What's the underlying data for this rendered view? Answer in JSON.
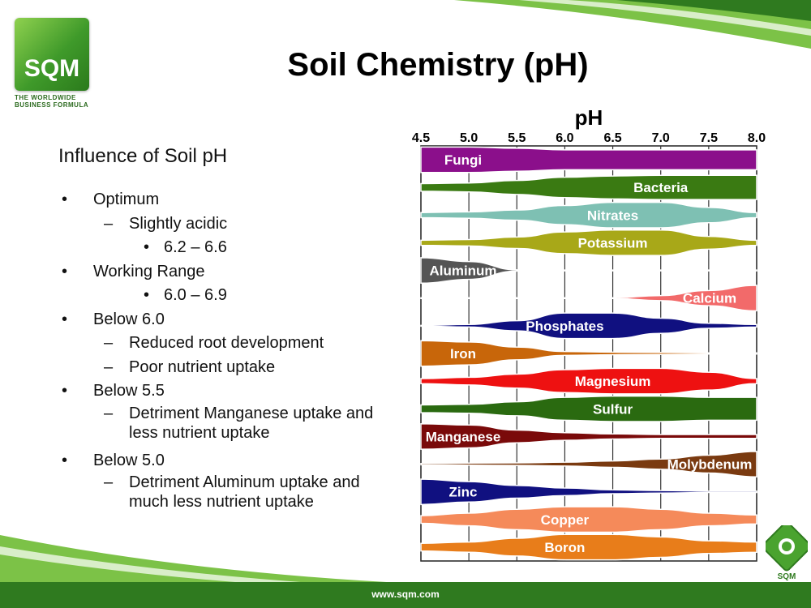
{
  "brand": {
    "name": "SQM",
    "tagline": [
      "THE WORLDWIDE",
      "BUSINESS FORMULA"
    ],
    "website": "www.sqm.com",
    "colors": {
      "primary_green": "#3f9a2a",
      "light_green": "#8fd14f",
      "footer_green": "#2f7a1f"
    }
  },
  "slide": {
    "title": "Soil Chemistry (pH)",
    "subtitle": "Influence of Soil pH"
  },
  "bullets": [
    {
      "level": 1,
      "marker": "•",
      "text": "Optimum"
    },
    {
      "level": 2,
      "marker": "–",
      "text": "Slightly acidic"
    },
    {
      "level": 3,
      "marker": "•",
      "text": "6.2 – 6.6"
    },
    {
      "level": 1,
      "marker": "•",
      "text": "Working Range"
    },
    {
      "level": 3,
      "marker": "•",
      "text": "6.0 – 6.9"
    },
    {
      "level": 1,
      "marker": "•",
      "text": "Below 6.0"
    },
    {
      "level": 2,
      "marker": "–",
      "text": "Reduced root development"
    },
    {
      "level": 2,
      "marker": "–",
      "text": "Poor nutrient uptake"
    },
    {
      "level": 1,
      "marker": "•",
      "text": "Below 5.5"
    },
    {
      "level": 2,
      "marker": "–",
      "text": "Detriment Manganese uptake and less nutrient uptake"
    },
    {
      "level": 1,
      "marker": "•",
      "text": "Below 5.0"
    },
    {
      "level": 2,
      "marker": "–",
      "text": "Detriment Aluminum uptake and much less nutrient uptake"
    }
  ],
  "chart_data": {
    "type": "area",
    "title": "pH",
    "x_ticks": [
      "4.5",
      "5.0",
      "5.5",
      "6.0",
      "6.5",
      "7.0",
      "7.5",
      "8.0"
    ],
    "xlim": [
      4.5,
      8.0
    ],
    "grid": true,
    "series": [
      {
        "name": "Fungi",
        "color": "#8b0f8b",
        "text_color": "#ffffff",
        "availability": [
          [
            4.5,
            1.0
          ],
          [
            5.0,
            1.0
          ],
          [
            5.5,
            0.9
          ],
          [
            6.0,
            0.78
          ],
          [
            6.5,
            0.78
          ],
          [
            7.0,
            0.78
          ],
          [
            7.5,
            0.78
          ],
          [
            8.0,
            0.78
          ]
        ]
      },
      {
        "name": "Bacteria",
        "color": "#3a7a12",
        "text_color": "#ffffff",
        "availability": [
          [
            4.5,
            0.3
          ],
          [
            5.0,
            0.35
          ],
          [
            5.5,
            0.55
          ],
          [
            6.0,
            0.8
          ],
          [
            6.5,
            0.9
          ],
          [
            7.0,
            0.95
          ],
          [
            7.5,
            0.95
          ],
          [
            8.0,
            0.95
          ]
        ]
      },
      {
        "name": "Nitrates",
        "color": "#7ec0b3",
        "text_color": "#ffffff",
        "availability": [
          [
            4.5,
            0.2
          ],
          [
            5.0,
            0.25
          ],
          [
            5.5,
            0.4
          ],
          [
            6.0,
            0.75
          ],
          [
            6.5,
            1.0
          ],
          [
            7.0,
            1.0
          ],
          [
            7.5,
            0.6
          ],
          [
            8.0,
            0.2
          ]
        ]
      },
      {
        "name": "Potassium",
        "color": "#a8a818",
        "text_color": "#ffffff",
        "availability": [
          [
            4.5,
            0.2
          ],
          [
            5.0,
            0.25
          ],
          [
            5.5,
            0.45
          ],
          [
            6.0,
            0.85
          ],
          [
            6.5,
            1.0
          ],
          [
            7.0,
            1.0
          ],
          [
            7.5,
            0.5
          ],
          [
            8.0,
            0.2
          ]
        ]
      },
      {
        "name": "Aluminum",
        "color": "#555555",
        "text_color": "#ffffff",
        "availability": [
          [
            4.5,
            1.0
          ],
          [
            5.0,
            0.7
          ],
          [
            5.5,
            0.05
          ],
          [
            6.0,
            0.0
          ],
          [
            6.5,
            0.0
          ],
          [
            7.0,
            0.0
          ],
          [
            7.5,
            0.0
          ],
          [
            8.0,
            0.0
          ]
        ]
      },
      {
        "name": "Calcium",
        "color": "#f26a6a",
        "text_color": "#ffffff",
        "availability": [
          [
            4.5,
            0.0
          ],
          [
            5.0,
            0.0
          ],
          [
            5.5,
            0.0
          ],
          [
            6.0,
            0.0
          ],
          [
            6.5,
            0.0
          ],
          [
            7.0,
            0.2
          ],
          [
            7.5,
            0.6
          ],
          [
            8.0,
            1.0
          ]
        ]
      },
      {
        "name": "Phosphates",
        "color": "#101080",
        "text_color": "#ffffff",
        "availability": [
          [
            4.5,
            0.0
          ],
          [
            5.0,
            0.1
          ],
          [
            5.5,
            0.4
          ],
          [
            6.0,
            1.0
          ],
          [
            6.5,
            1.0
          ],
          [
            7.0,
            0.6
          ],
          [
            7.5,
            0.2
          ],
          [
            8.0,
            0.1
          ]
        ]
      },
      {
        "name": "Iron",
        "color": "#c8660a",
        "text_color": "#ffffff",
        "availability": [
          [
            4.5,
            1.0
          ],
          [
            5.0,
            0.9
          ],
          [
            5.5,
            0.5
          ],
          [
            6.0,
            0.15
          ],
          [
            6.5,
            0.1
          ],
          [
            7.0,
            0.08
          ],
          [
            7.5,
            0.05
          ],
          [
            8.0,
            0.05
          ]
        ]
      },
      {
        "name": "Magnesium",
        "color": "#ee1111",
        "text_color": "#ffffff",
        "availability": [
          [
            4.5,
            0.2
          ],
          [
            5.0,
            0.3
          ],
          [
            5.5,
            0.55
          ],
          [
            6.0,
            0.9
          ],
          [
            6.5,
            1.0
          ],
          [
            7.0,
            1.0
          ],
          [
            7.5,
            0.7
          ],
          [
            8.0,
            0.2
          ]
        ]
      },
      {
        "name": "Sulfur",
        "color": "#2a6a10",
        "text_color": "#ffffff",
        "availability": [
          [
            4.5,
            0.3
          ],
          [
            5.0,
            0.35
          ],
          [
            5.5,
            0.55
          ],
          [
            6.0,
            0.9
          ],
          [
            6.5,
            1.0
          ],
          [
            7.0,
            1.0
          ],
          [
            7.5,
            0.9
          ],
          [
            8.0,
            0.9
          ]
        ]
      },
      {
        "name": "Manganese",
        "color": "#7a0a0a",
        "text_color": "#ffffff",
        "availability": [
          [
            4.5,
            1.0
          ],
          [
            5.0,
            0.9
          ],
          [
            5.5,
            0.5
          ],
          [
            6.0,
            0.3
          ],
          [
            6.5,
            0.2
          ],
          [
            7.0,
            0.15
          ],
          [
            7.5,
            0.15
          ],
          [
            8.0,
            0.15
          ]
        ]
      },
      {
        "name": "Molybdenum",
        "color": "#7a3a10",
        "text_color": "#ffffff",
        "availability": [
          [
            4.5,
            0.05
          ],
          [
            5.0,
            0.08
          ],
          [
            5.5,
            0.1
          ],
          [
            6.0,
            0.15
          ],
          [
            6.5,
            0.25
          ],
          [
            7.0,
            0.4
          ],
          [
            7.5,
            0.7
          ],
          [
            8.0,
            1.0
          ]
        ]
      },
      {
        "name": "Zinc",
        "color": "#101080",
        "text_color": "#ffffff",
        "availability": [
          [
            4.5,
            1.0
          ],
          [
            5.0,
            0.8
          ],
          [
            5.5,
            0.5
          ],
          [
            6.0,
            0.3
          ],
          [
            6.5,
            0.15
          ],
          [
            7.0,
            0.1
          ],
          [
            7.5,
            0.05
          ],
          [
            8.0,
            0.05
          ]
        ]
      },
      {
        "name": "Copper",
        "color": "#f58a5a",
        "text_color": "#ffffff",
        "availability": [
          [
            4.5,
            0.3
          ],
          [
            5.0,
            0.5
          ],
          [
            5.5,
            0.8
          ],
          [
            6.0,
            1.0
          ],
          [
            6.5,
            1.0
          ],
          [
            7.0,
            0.8
          ],
          [
            7.5,
            0.5
          ],
          [
            8.0,
            0.35
          ]
        ]
      },
      {
        "name": "Boron",
        "color": "#e87d1a",
        "text_color": "#ffffff",
        "availability": [
          [
            4.5,
            0.3
          ],
          [
            5.0,
            0.4
          ],
          [
            5.5,
            0.7
          ],
          [
            6.0,
            1.0
          ],
          [
            6.5,
            1.0
          ],
          [
            7.0,
            0.8
          ],
          [
            7.5,
            0.5
          ],
          [
            8.0,
            0.4
          ]
        ]
      }
    ]
  }
}
